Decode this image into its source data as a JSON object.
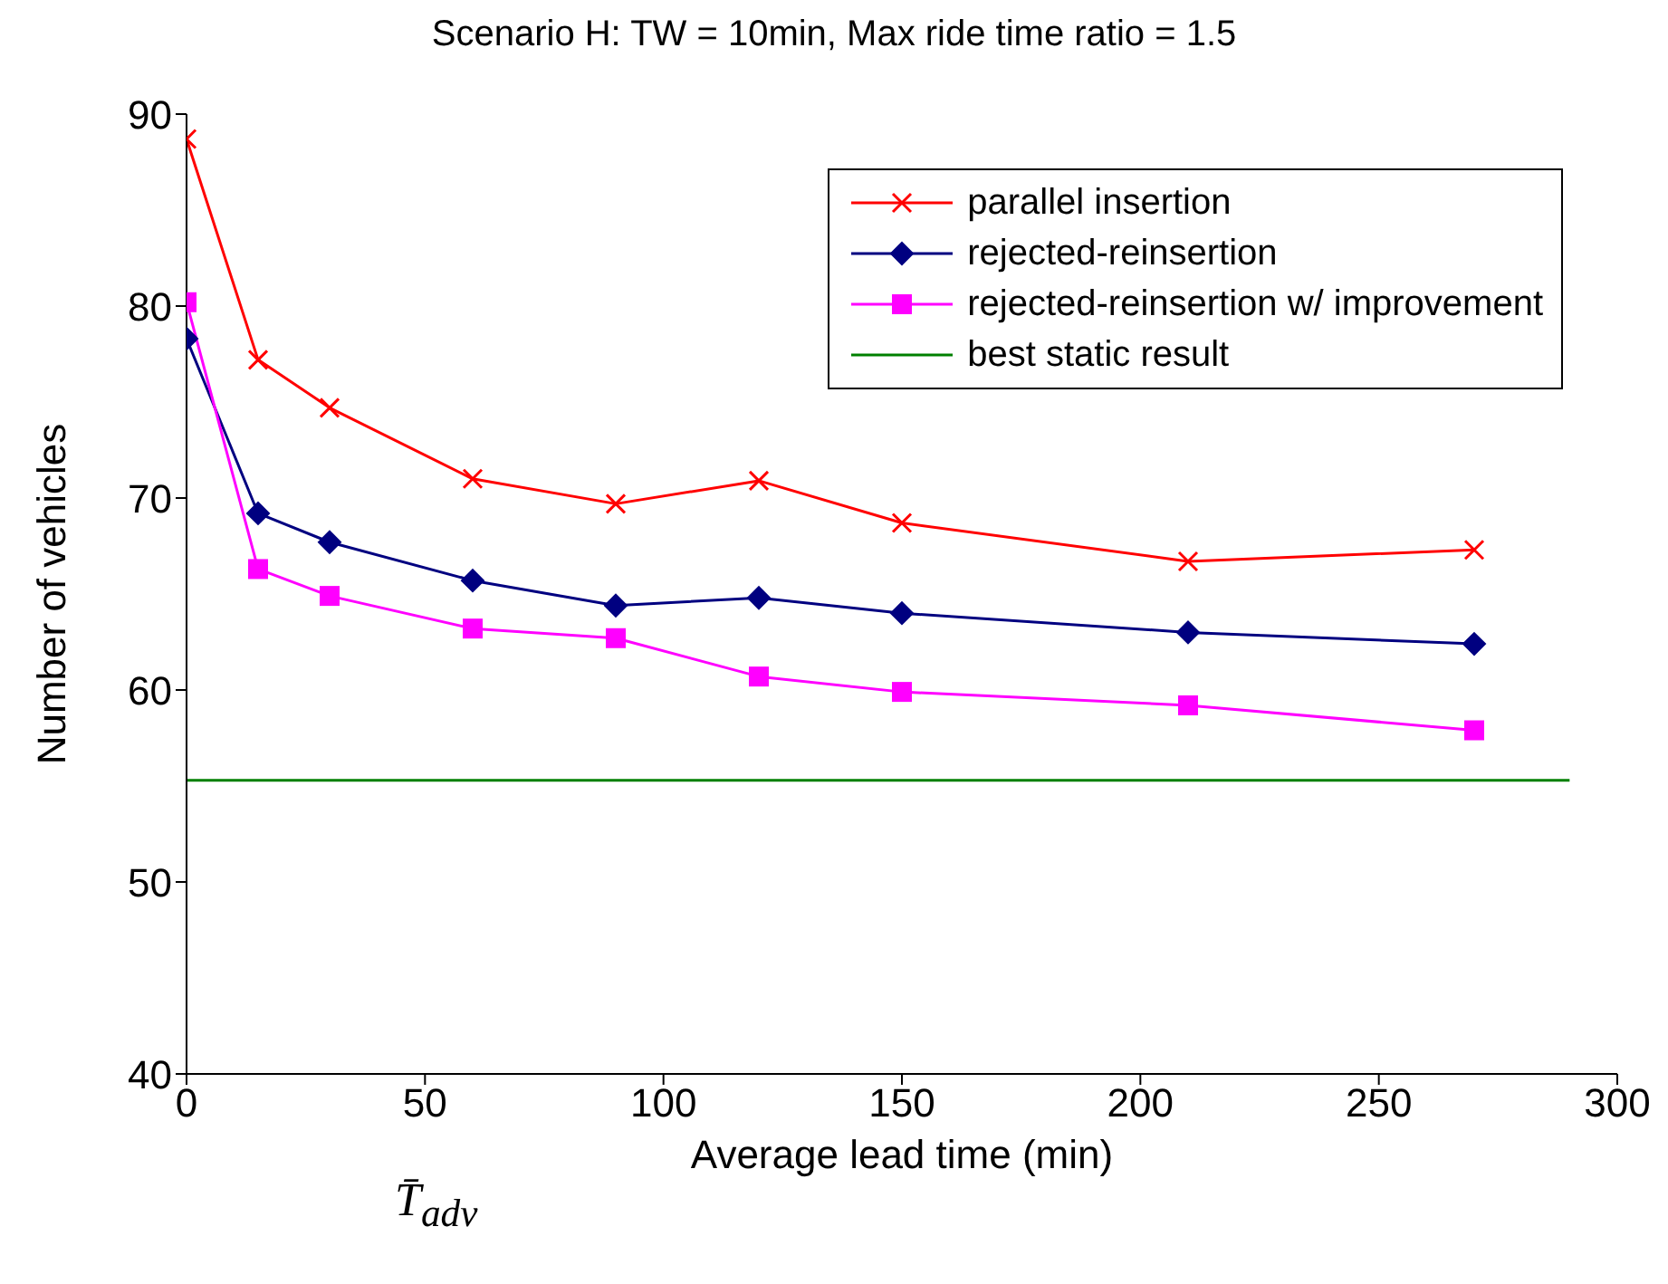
{
  "chart_data": {
    "type": "line",
    "title": "Scenario H: TW = 10min, Max ride time ratio = 1.5",
    "xlabel": "Average lead time (min)",
    "ylabel": "Number of vehicles",
    "annotations": [
      "T̄$_{adv}$"
    ],
    "xlim": [
      0,
      300
    ],
    "xticks": [
      0,
      50,
      100,
      150,
      200,
      250,
      300
    ],
    "ylim": [
      40,
      90
    ],
    "yticks": [
      40,
      50,
      60,
      70,
      80,
      90
    ],
    "legend": "top right",
    "series": [
      {
        "name": "parallel insertion",
        "color": "#ff0000",
        "marker": "cross",
        "x": [
          0,
          15,
          30,
          60,
          90,
          120,
          150,
          210,
          270
        ],
        "values": [
          88.7,
          77.2,
          74.7,
          71.0,
          69.7,
          70.9,
          68.7,
          66.7,
          67.3
        ]
      },
      {
        "name": "rejected-reinsertion",
        "color": "#000080",
        "marker": "diamond",
        "x": [
          0,
          15,
          30,
          60,
          90,
          120,
          150,
          210,
          270
        ],
        "values": [
          78.3,
          69.2,
          67.7,
          65.7,
          64.4,
          64.8,
          64.0,
          63.0,
          62.4
        ]
      },
      {
        "name": "rejected-reinsertion w/ improvement",
        "color": "#ff00ff",
        "marker": "square",
        "x": [
          0,
          15,
          30,
          60,
          90,
          120,
          150,
          210,
          270
        ],
        "values": [
          80.2,
          66.3,
          64.9,
          63.2,
          62.7,
          60.7,
          59.9,
          59.2,
          57.9
        ]
      },
      {
        "name": "best static result",
        "color": "#008000",
        "marker": "none",
        "x": [
          0,
          290
        ],
        "values": [
          55.3,
          55.3
        ]
      }
    ]
  }
}
